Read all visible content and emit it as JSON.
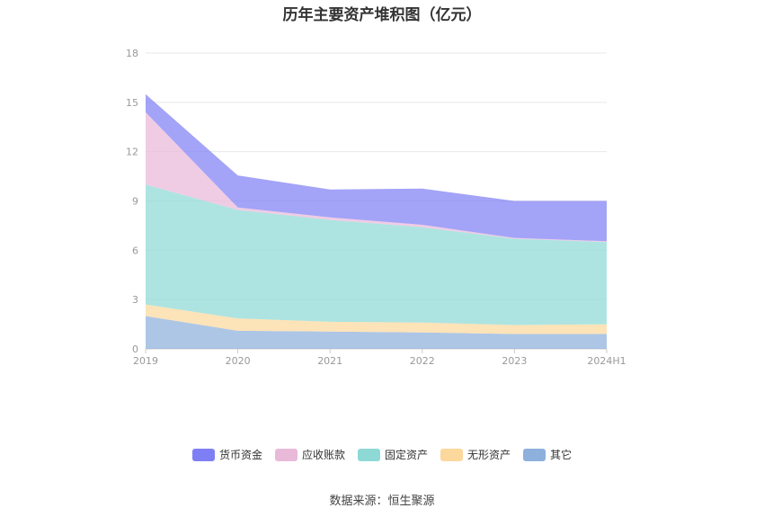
{
  "chart_data": {
    "type": "area",
    "stacked": true,
    "title": "历年主要资产堆积图（亿元）",
    "categories": [
      "2019",
      "2020",
      "2021",
      "2022",
      "2023",
      "2024H1"
    ],
    "ylim": [
      0,
      18
    ],
    "yticks": [
      "0",
      "3",
      "6",
      "9",
      "12",
      "15",
      "18"
    ],
    "grid": true,
    "legend_position": "bottom",
    "series": [
      {
        "name": "其它",
        "color": "#8eb0dc",
        "values": [
          2.0,
          1.1,
          1.05,
          1.0,
          0.9,
          0.9
        ]
      },
      {
        "name": "无形资产",
        "color": "#fcd89d",
        "values": [
          0.7,
          0.75,
          0.6,
          0.6,
          0.55,
          0.6
        ]
      },
      {
        "name": "固定资产",
        "color": "#8ed9d6",
        "values": [
          7.3,
          6.6,
          6.2,
          5.8,
          5.25,
          5.0
        ]
      },
      {
        "name": "应收账款",
        "color": "#e9b9da",
        "values": [
          4.4,
          0.15,
          0.15,
          0.15,
          0.05,
          0.05
        ]
      },
      {
        "name": "货币资金",
        "color": "#7f7ff5",
        "values": [
          1.1,
          1.95,
          1.7,
          2.2,
          2.25,
          2.45
        ]
      }
    ]
  },
  "legend_order": [
    "货币资金",
    "应收账款",
    "固定资产",
    "无形资产",
    "其它"
  ],
  "source": "数据来源：恒生聚源"
}
